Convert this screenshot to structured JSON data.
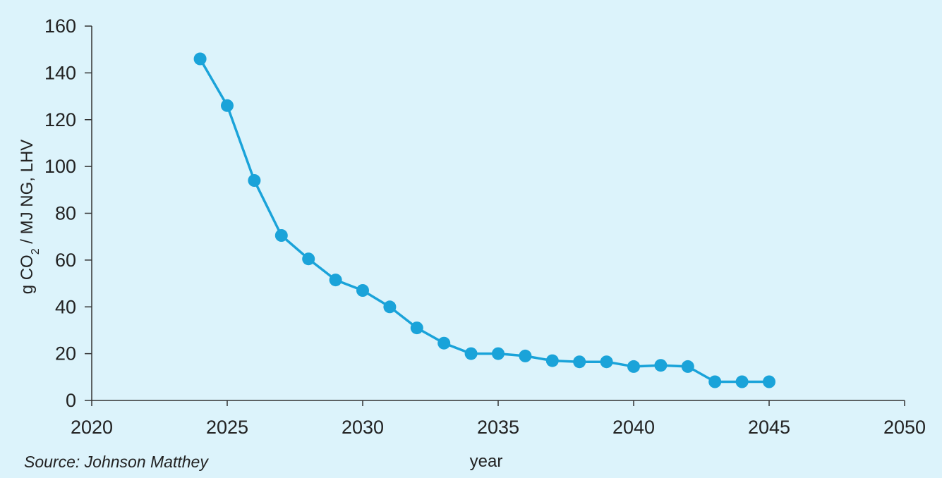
{
  "chart_data": {
    "type": "line",
    "title": "",
    "xlabel": "year",
    "ylabel_parts": [
      "g CO",
      "2",
      " / MJ NG, LHV"
    ],
    "xlim": [
      2020,
      2050
    ],
    "ylim": [
      0,
      160
    ],
    "x_ticks": [
      2020,
      2025,
      2030,
      2035,
      2040,
      2045,
      2050
    ],
    "y_ticks": [
      0,
      20,
      40,
      60,
      80,
      100,
      120,
      140,
      160
    ],
    "grid": false,
    "legend": "none",
    "series": [
      {
        "color": "#1aa3d9",
        "x": [
          2024,
          2025,
          2026,
          2027,
          2028,
          2029,
          2030,
          2031,
          2032,
          2033,
          2034,
          2035,
          2036,
          2037,
          2038,
          2039,
          2040,
          2041,
          2042,
          2043,
          2044,
          2045
        ],
        "y": [
          146,
          126,
          94,
          70.5,
          60.5,
          51.5,
          47,
          40,
          31,
          24.5,
          20,
          20,
          19,
          17,
          16.5,
          16.5,
          14.5,
          15,
          14.5,
          8,
          8,
          8
        ]
      }
    ]
  },
  "source": "Source: Johnson Matthey",
  "colors": {
    "background": "#dcf3fb",
    "axis": "#333333",
    "text": "#222222"
  }
}
